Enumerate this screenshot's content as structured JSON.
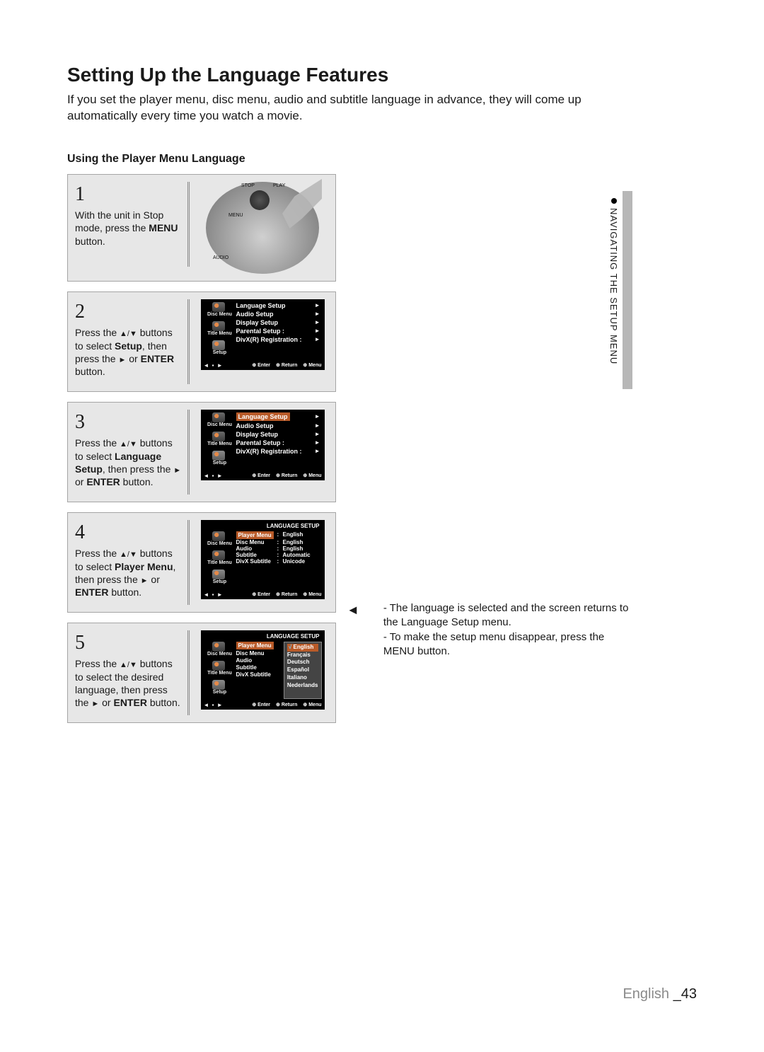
{
  "title": "Setting Up the Language Features",
  "intro": "If you set the player menu, disc menu, audio and subtitle language in advance, they will come up automatically every time you watch a movie.",
  "sub": "Using the Player Menu Language",
  "side_tab": "NAVIGATING THE SETUP MENU",
  "footer_lang": "English",
  "footer_page": "_43",
  "remote_labels": {
    "stop": "STOP",
    "play": "PLAY",
    "menu": "MENU",
    "audio": "AUDIO"
  },
  "steps": [
    {
      "n": "1",
      "html": "With the unit in Stop mode, press the <b>MENU</b> button."
    },
    {
      "n": "2",
      "html": "Press the <span class='tri'>▲/▼</span> buttons to select <b>Setup</b>, then press the <span class='tri'>►</span> or <b>ENTER</b> button."
    },
    {
      "n": "3",
      "html": "Press the <span class='tri'>▲/▼</span> buttons to select <b>Language Setup</b>, then press the <span class='tri'>►</span> or <b>ENTER</b> button."
    },
    {
      "n": "4",
      "html": "Press the <span class='tri'>▲/▼</span> buttons to select <b>Player Menu</b>, then press the <span class='tri'>►</span> or <b>ENTER</b>  button."
    },
    {
      "n": "5",
      "html": "Press the <span class='tri'>▲/▼</span> buttons to select the desired language, then press the <span class='tri'>►</span> or <b>ENTER</b> button."
    }
  ],
  "osd_side": [
    {
      "label": "Disc Menu"
    },
    {
      "label": "Title Menu"
    },
    {
      "label": "Setup",
      "cls": "setup"
    }
  ],
  "osd_footer": [
    "Enter",
    "Return",
    "Menu"
  ],
  "osd2_items": [
    "Language Setup",
    "Audio Setup",
    "Display Setup",
    "Parental Setup :",
    "DivX(R) Registration :"
  ],
  "osd3_items": [
    "Language Setup",
    "Audio Setup",
    "Display Setup",
    "Parental Setup :",
    "DivX(R) Registration :"
  ],
  "osd4_title": "LANGUAGE SETUP",
  "osd4_rows": [
    {
      "k": "Player Menu",
      "v": "English",
      "hl": true
    },
    {
      "k": "Disc Menu",
      "v": "English"
    },
    {
      "k": "Audio",
      "v": "English"
    },
    {
      "k": "Subtitle",
      "v": "Automatic"
    },
    {
      "k": "DivX Subtitle",
      "v": "Unicode"
    }
  ],
  "osd5_title": "LANGUAGE SETUP",
  "osd5_left": [
    "Player Menu",
    "Disc Menu",
    "Audio",
    "Subtitle",
    "DivX Subtitle"
  ],
  "osd5_langs": [
    "English",
    "Français",
    "Deutsch",
    "Español",
    "Italiano",
    "Nederlands"
  ],
  "right_notes": [
    "The language is selected and the screen returns to the Language Setup menu.",
    "To make the setup menu disappear, press the MENU button."
  ],
  "colors": {
    "step_bg": "#e7e7e7",
    "step_border": "#a5a5a5",
    "highlight": "#b85a28",
    "footer_grey": "#8a8a8a"
  }
}
